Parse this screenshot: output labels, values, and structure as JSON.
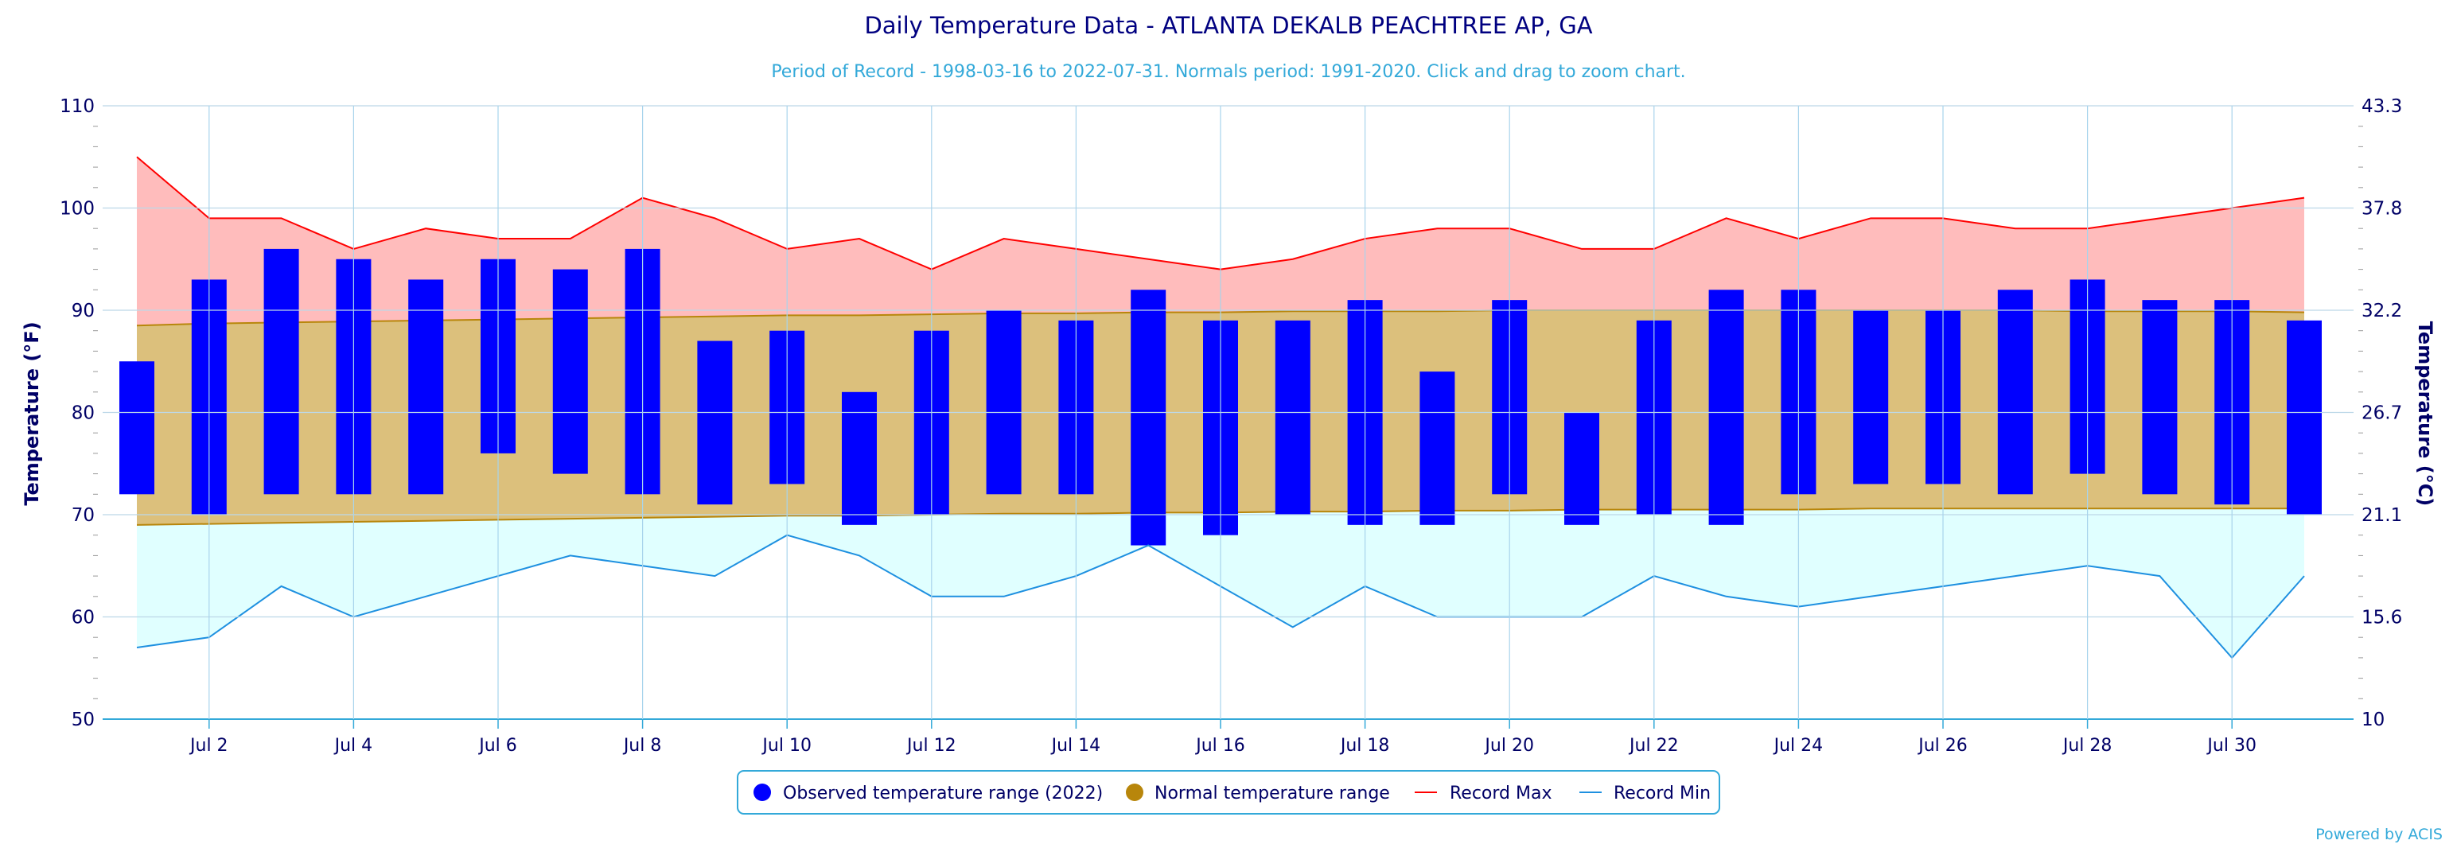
{
  "chart_data": {
    "type": "bar",
    "title": "Daily Temperature Data - ATLANTA DEKALB PEACHTREE AP, GA",
    "subtitle": "Period of Record - 1998-03-16 to 2022-07-31. Normals period: 1991-2020. Click and drag to zoom chart.",
    "ylabel": "Temperature (°F)",
    "ylabel_right": "Temperature (°C)",
    "ylim": [
      50,
      110
    ],
    "yticks": [
      50,
      60,
      70,
      80,
      90,
      100,
      110
    ],
    "yticks_right": [
      "10",
      "15.6",
      "21.1",
      "26.7",
      "32.2",
      "37.8",
      "43.3"
    ],
    "xlim": [
      1,
      31
    ],
    "xticks": [
      {
        "day": 2,
        "label": "Jul 2"
      },
      {
        "day": 4,
        "label": "Jul 4"
      },
      {
        "day": 6,
        "label": "Jul 6"
      },
      {
        "day": 8,
        "label": "Jul 8"
      },
      {
        "day": 10,
        "label": "Jul 10"
      },
      {
        "day": 12,
        "label": "Jul 12"
      },
      {
        "day": 14,
        "label": "Jul 14"
      },
      {
        "day": 16,
        "label": "Jul 16"
      },
      {
        "day": 18,
        "label": "Jul 18"
      },
      {
        "day": 20,
        "label": "Jul 20"
      },
      {
        "day": 22,
        "label": "Jul 22"
      },
      {
        "day": 24,
        "label": "Jul 24"
      },
      {
        "day": 26,
        "label": "Jul 26"
      },
      {
        "day": 28,
        "label": "Jul 28"
      },
      {
        "day": 30,
        "label": "Jul 30"
      }
    ],
    "grid": true,
    "legend_position": "bottom-center",
    "days": [
      1,
      2,
      3,
      4,
      5,
      6,
      7,
      8,
      9,
      10,
      11,
      12,
      13,
      14,
      15,
      16,
      17,
      18,
      19,
      20,
      21,
      22,
      23,
      24,
      25,
      26,
      27,
      28,
      29,
      30,
      31
    ],
    "series": [
      {
        "name": "Observed temperature range (2022)",
        "color": "#0000ff",
        "low": [
          72,
          70,
          72,
          72,
          72,
          76,
          74,
          72,
          71,
          73,
          69,
          70,
          72,
          72,
          67,
          68,
          70,
          69,
          69,
          72,
          69,
          70,
          69,
          72,
          73,
          73,
          72,
          74,
          72,
          71,
          70
        ],
        "high": [
          85,
          93,
          96,
          95,
          93,
          95,
          94,
          96,
          87,
          88,
          82,
          88,
          90,
          89,
          92,
          89,
          89,
          91,
          84,
          91,
          80,
          89,
          92,
          92,
          90,
          90,
          92,
          93,
          91,
          91,
          89
        ]
      },
      {
        "name": "Normal temperature range",
        "color": "#b8860b",
        "fill": "#dcc07c",
        "low": [
          69.0,
          69.1,
          69.2,
          69.3,
          69.4,
          69.5,
          69.6,
          69.7,
          69.8,
          69.9,
          69.9,
          70.0,
          70.1,
          70.1,
          70.2,
          70.2,
          70.3,
          70.3,
          70.4,
          70.4,
          70.5,
          70.5,
          70.5,
          70.5,
          70.6,
          70.6,
          70.6,
          70.6,
          70.6,
          70.6,
          70.6
        ],
        "high": [
          88.5,
          88.7,
          88.8,
          88.9,
          89.0,
          89.1,
          89.2,
          89.3,
          89.4,
          89.5,
          89.5,
          89.6,
          89.7,
          89.7,
          89.8,
          89.8,
          89.9,
          89.9,
          89.9,
          90.0,
          90.0,
          90.0,
          90.0,
          90.0,
          90.0,
          90.0,
          90.0,
          89.9,
          89.9,
          89.9,
          89.8
        ]
      },
      {
        "name": "Record Max",
        "color": "#ff0000",
        "fill": "#ffbcbc",
        "values": [
          105,
          99,
          99,
          96,
          98,
          97,
          97,
          101,
          99,
          96,
          97,
          94,
          97,
          96,
          95,
          94,
          95,
          97,
          98,
          98,
          96,
          96,
          99,
          97,
          99,
          99,
          98,
          98,
          99,
          100,
          101
        ]
      },
      {
        "name": "Record Min",
        "color": "#1e90e0",
        "fill": "#e0ffff",
        "values": [
          57,
          58,
          63,
          60,
          62,
          64,
          66,
          65,
          64,
          68,
          66,
          62,
          62,
          64,
          67,
          63,
          59,
          63,
          60,
          60,
          60,
          64,
          62,
          61,
          62,
          63,
          64,
          65,
          64,
          56,
          64
        ]
      }
    ]
  },
  "footer": {
    "credit": "Powered by ACIS"
  }
}
